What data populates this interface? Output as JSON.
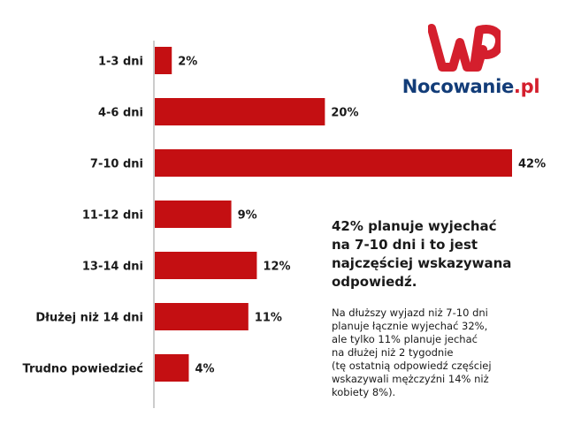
{
  "chart_data": {
    "type": "bar",
    "orientation": "horizontal",
    "categories": [
      "1-3 dni",
      "4-6 dni",
      "7-10 dni",
      "11-12 dni",
      "13-14 dni",
      "Dłużej niż 14 dni",
      "Trudno powiedzieć"
    ],
    "values": [
      2,
      20,
      42,
      9,
      12,
      11,
      4
    ],
    "value_labels": [
      "2%",
      "20%",
      "42%",
      "9%",
      "12%",
      "11%",
      "4%"
    ],
    "unit": "%",
    "bar_color": "#c40f12",
    "grid": false,
    "xlim": [
      0,
      42
    ]
  },
  "logo": {
    "name_main": "Nocowanie",
    "name_suffix": ".pl",
    "colors": {
      "red": "#d41f2d",
      "blue": "#123c78"
    }
  },
  "headline": {
    "lines": [
      "42% planuje wyjechać",
      "na 7-10 dni i to jest",
      "najczęściej wskazywana",
      "odpowiedź."
    ]
  },
  "note": {
    "lines": [
      "Na dłuższy wyjazd niż 7-10 dni",
      "planuje łącznie wyjechać 32%,",
      "ale tylko 11% planuje jechać",
      "na dłużej niż 2 tygodnie",
      "(tę ostatnią odpowiedź częściej",
      "wskazywali mężczyźni 14% niż",
      "kobiety 8%)."
    ]
  }
}
